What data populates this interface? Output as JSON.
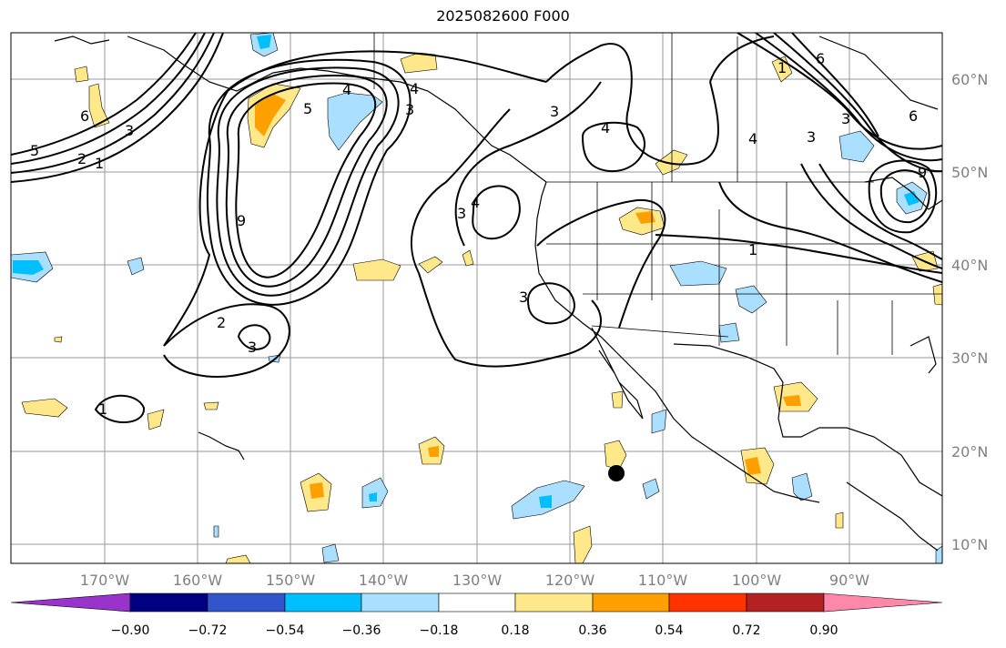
{
  "title": "2025082600 F000",
  "longitude_labels": [
    "170°W",
    "160°W",
    "150°W",
    "140°W",
    "130°W",
    "120°W",
    "110°W",
    "100°W",
    "90°W"
  ],
  "latitude_labels": [
    "60°N",
    "50°N",
    "40°N",
    "30°N",
    "20°N",
    "10°N"
  ],
  "colorbar": {
    "tick_labels": [
      "−0.90",
      "−0.72",
      "−0.54",
      "−0.36",
      "−0.18",
      "0.18",
      "0.36",
      "0.54",
      "0.72",
      "0.90"
    ],
    "colors": [
      "#9933cc",
      "#000080",
      "#3355cc",
      "#00bfff",
      "#aadfff",
      "#ffffff",
      "#ffe88a",
      "#ffa000",
      "#ff3300",
      "#b22222",
      "#ff88aa",
      "#ff88aa"
    ]
  },
  "contour_labels": [
    "6",
    "5",
    "4",
    "3",
    "2",
    "1",
    "5",
    "4",
    "3",
    "9",
    "3",
    "3",
    "4",
    "3",
    "4",
    "3",
    "4",
    "6",
    "6",
    "9",
    "1",
    "1",
    "2",
    "3",
    "1",
    "3"
  ],
  "colors": {
    "positive_fill": "#ffe88a",
    "positive_core": "#ffa000",
    "negative_fill": "#aadfff",
    "negative_core": "#00bfff",
    "contour": "#000000",
    "grid": "#999999"
  }
}
